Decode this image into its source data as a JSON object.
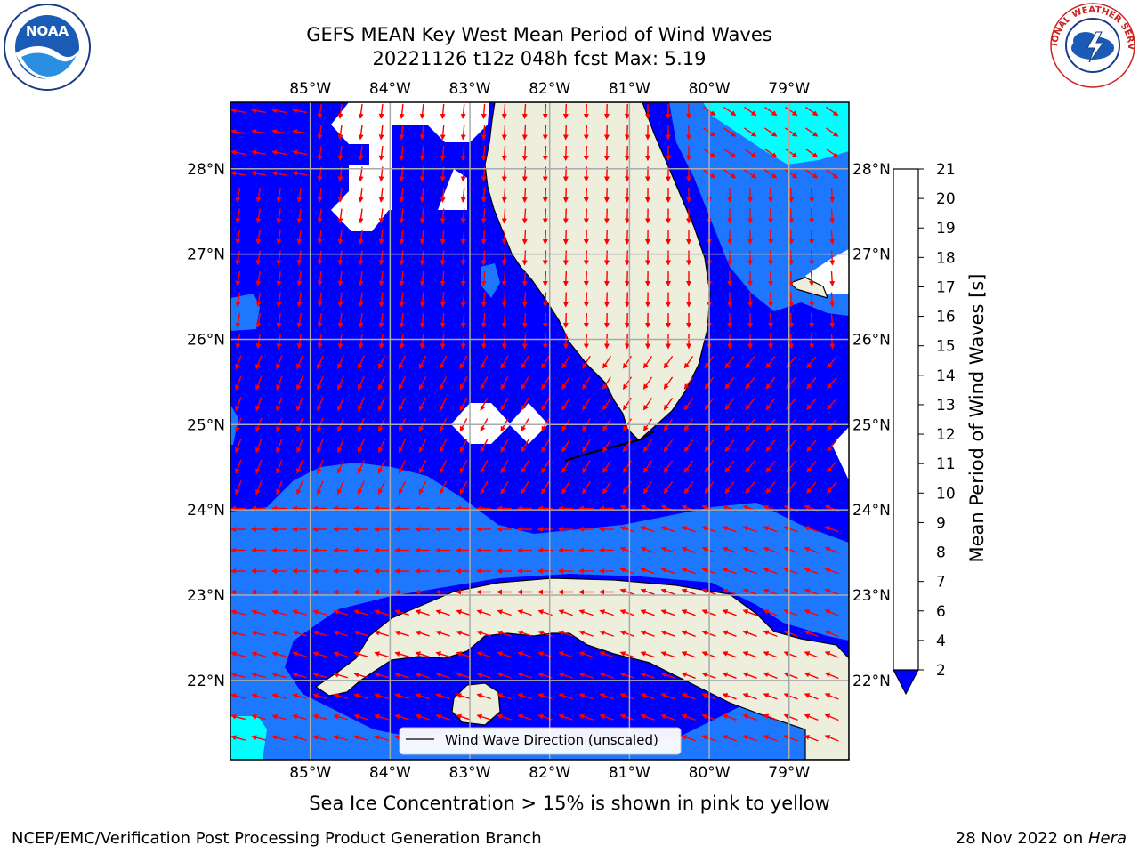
{
  "title": {
    "line1": "GEFS MEAN Key West Mean Period of Wind Waves",
    "line2": "20221126 t12z 048h fcst   Max: 5.19"
  },
  "logos": {
    "left": {
      "text": "NOAA",
      "icon": "noaa-logo-icon"
    },
    "right": {
      "text": "NATIONAL WEATHER SERVICE",
      "icon": "nws-logo-icon"
    }
  },
  "map": {
    "lon_labels": [
      "85°W",
      "84°W",
      "83°W",
      "82°W",
      "81°W",
      "80°W",
      "79°W"
    ],
    "lon_values": [
      -85,
      -84,
      -83,
      -82,
      -81,
      -80,
      -79
    ],
    "lat_labels": [
      "28°N",
      "27°N",
      "26°N",
      "25°N",
      "24°N",
      "23°N",
      "22°N"
    ],
    "lat_values": [
      28,
      27,
      26,
      25,
      24,
      23,
      22
    ],
    "lon_range": [
      -86.0,
      -78.25
    ],
    "lat_range": [
      21.07,
      28.78
    ],
    "legend": "Wind Wave Direction (unscaled)",
    "colors": {
      "ocean_deep": "#0000ff",
      "ocean_mid": "#1e78ff",
      "ocean_light": "#00ffff",
      "land": "#eeeedd",
      "arrow": "#ff0000",
      "grid": "#aaaaaa"
    }
  },
  "colorbar": {
    "title": "Mean Period of Wind Waves [s]",
    "ticks": [
      "2",
      "4",
      "6",
      "7",
      "8",
      "9",
      "10",
      "11",
      "12",
      "13",
      "14",
      "15",
      "16",
      "17",
      "18",
      "19",
      "20",
      "21"
    ],
    "colors": [
      "#1e78ff",
      "#00ffff",
      "#40ffff",
      "#80ffff",
      "#b0ffff",
      "#50ff80",
      "#00ff40",
      "#00e000",
      "#60ff00",
      "#c0ff00",
      "#e6ff00",
      "#ffff00",
      "#ffe000",
      "#ffb000",
      "#ff8c00",
      "#ff6000",
      "#ff3000",
      "#ff0000"
    ],
    "underflow_color": "#0000ff"
  },
  "bottom_caption": "Sea Ice Concentration > 15% is shown in pink to yellow",
  "footer": {
    "left": "NCEP/EMC/Verification Post Processing Product Generation Branch",
    "date": "28 Nov 2022 on ",
    "host": "Hera"
  }
}
